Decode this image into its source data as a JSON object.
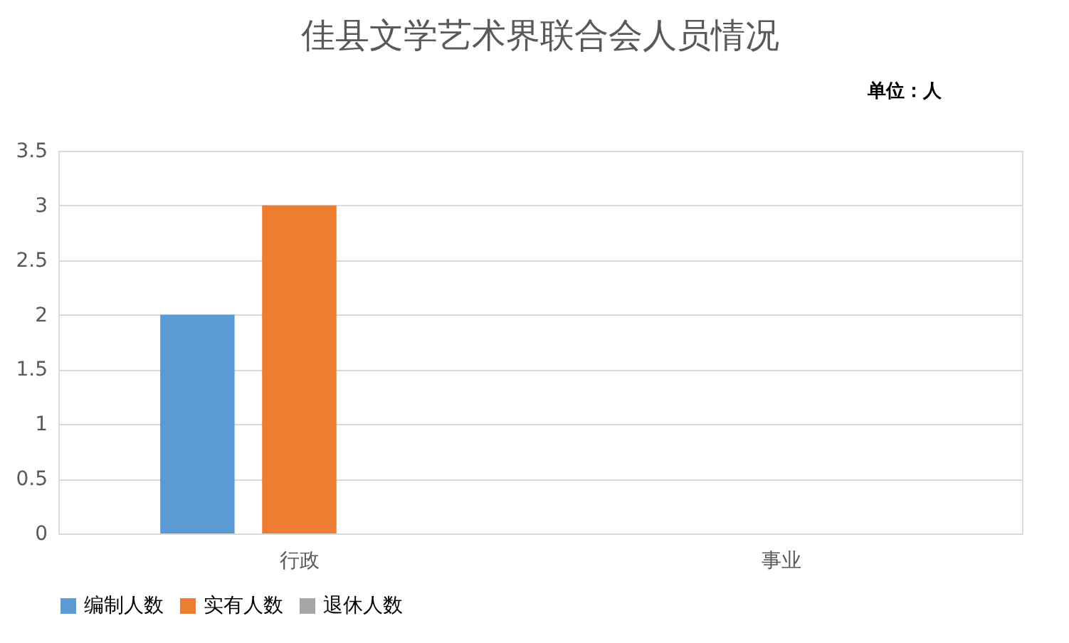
{
  "chart_data": {
    "type": "bar",
    "title": "佳县文学艺术界联合会人员情况",
    "annotations": [
      "单位：人"
    ],
    "categories": [
      "行政",
      "事业"
    ],
    "series": [
      {
        "name": "编制人数",
        "color": "#5b9bd5",
        "values": [
          2,
          0
        ]
      },
      {
        "name": "实有人数",
        "color": "#ed7d31",
        "values": [
          3,
          0
        ]
      },
      {
        "name": "退休人数",
        "color": "#a5a5a5",
        "values": [
          0,
          0
        ]
      }
    ],
    "ylim": [
      0,
      3.5
    ],
    "yticks": [
      0,
      0.5,
      1,
      1.5,
      2,
      2.5,
      3,
      3.5
    ],
    "grid": "y",
    "legend": "bottom"
  }
}
